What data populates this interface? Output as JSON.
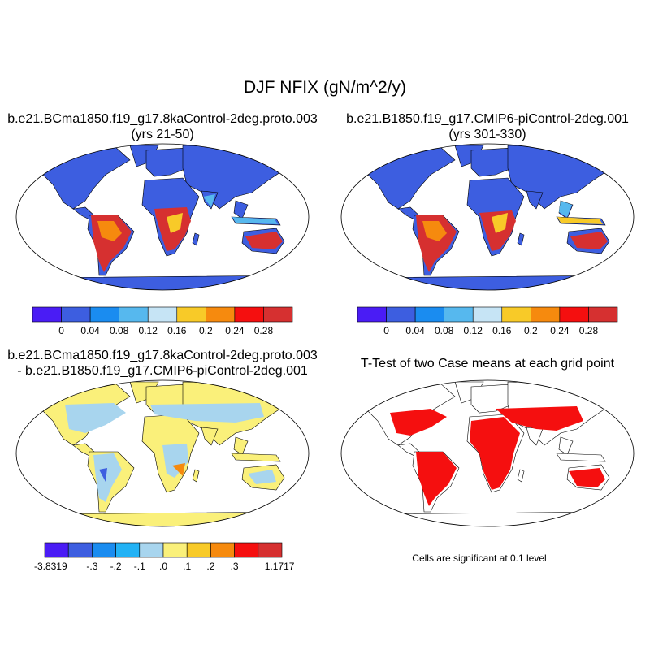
{
  "figure": {
    "title": "DJF NFIX (gN/m^2/y)"
  },
  "panels": {
    "top_left": {
      "title_line1": "b.e21.BCma1850.f19_g17.8kaControl-2deg.proto.003",
      "title_line2": "(yrs 21-50)"
    },
    "top_right": {
      "title_line1": "b.e21.B1850.f19_g17.CMIP6-piControl-2deg.001",
      "title_line2": "(yrs 301-330)"
    },
    "bottom_left": {
      "title_line1": "b.e21.BCma1850.f19_g17.8kaControl-2deg.proto.003",
      "title_line2": "- b.e21.B1850.f19_g17.CMIP6-piControl-2deg.001"
    },
    "bottom_right": {
      "title_line1": "T-Test of two Case means at each grid point",
      "note": "Cells are significant at 0.1 level"
    }
  },
  "colorbar_abs": {
    "colors": [
      "#4a1cf5",
      "#3d5ee0",
      "#1a8cf0",
      "#56b8ee",
      "#c6e4f5",
      "#f8ca28",
      "#f68a0e",
      "#f50f0f",
      "#d63030"
    ],
    "labels": [
      "0",
      "0.04",
      "0.08",
      "0.12",
      "0.16",
      "0.2",
      "0.24",
      "0.28"
    ]
  },
  "colorbar_diff": {
    "colors": [
      "#4a1cf5",
      "#3d5ee0",
      "#1a8cf0",
      "#22b2f5",
      "#a8d5ee",
      "#faf07a",
      "#f8ca28",
      "#f68a0e",
      "#f50f0f",
      "#d63030"
    ],
    "labels": [
      "-3.8319",
      "-.3",
      "-.2",
      "-.1",
      ".0",
      ".1",
      ".2",
      ".3",
      "1.1717"
    ]
  },
  "map_colors": {
    "ocean": "#ffffff",
    "land_low_abs": "#3d5ee0",
    "land_zero_diff": "#faf07a",
    "land_neg_diff": "#a8d5ee",
    "significant": "#f50f0f",
    "coastline": "#000000"
  }
}
